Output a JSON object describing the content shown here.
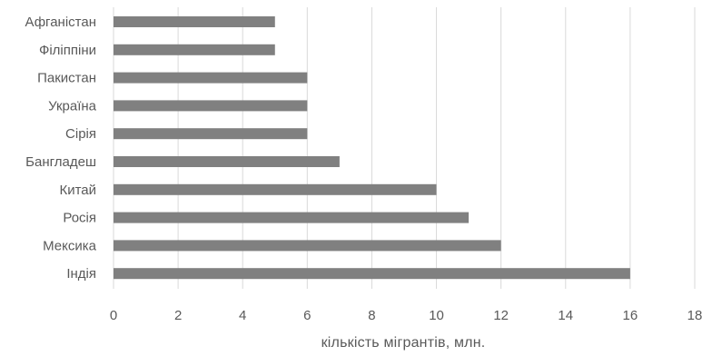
{
  "chart_data": {
    "type": "bar",
    "orientation": "horizontal",
    "categories": [
      "Афганістан",
      "Філіппіни",
      "Пакистан",
      "Україна",
      "Сірія",
      "Бангладеш",
      "Китай",
      "Росія",
      "Мексика",
      "Індія"
    ],
    "values": [
      5,
      5,
      6,
      6,
      6,
      7,
      10,
      11,
      12,
      16
    ],
    "xlabel": "кількість мігрантів, млн.",
    "xlim": [
      0,
      18
    ],
    "xticks": [
      0,
      2,
      4,
      6,
      8,
      10,
      12,
      14,
      16,
      18
    ],
    "grid": "vertical",
    "legend": "none",
    "colors": {
      "bar": "#808080",
      "grid": "#d9d9d9",
      "text": "#595959"
    }
  }
}
